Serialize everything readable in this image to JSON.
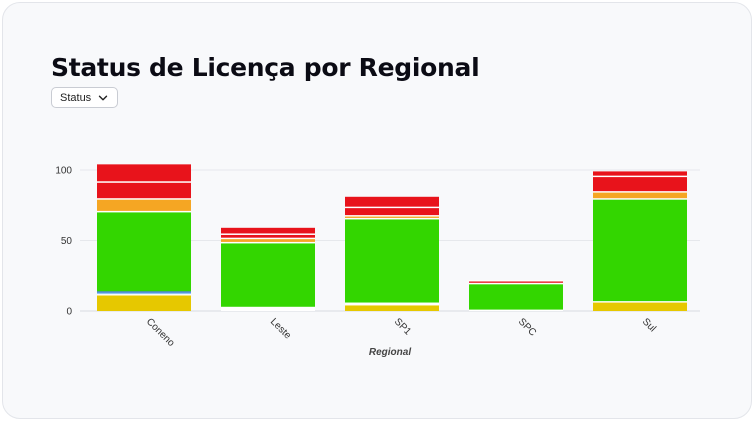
{
  "title": "Status de Licença por Regional",
  "dropdown": {
    "label": "Status"
  },
  "chart_data": {
    "type": "bar",
    "stacked": true,
    "categories": [
      "Coneno",
      "Leste",
      "SP1",
      "SPC",
      "Sul"
    ],
    "xlabel": "Regional",
    "ylabel": "",
    "ylim": [
      0,
      118
    ],
    "yticks": [
      0,
      50,
      100
    ],
    "grid": true,
    "series": [
      {
        "color": "#e6c800",
        "values": [
          11,
          0,
          4,
          0,
          6
        ]
      },
      {
        "color": "#ffffff",
        "values": [
          1,
          3,
          2,
          1,
          1
        ]
      },
      {
        "color": "#8fc8ee",
        "values": [
          1,
          0,
          0,
          0,
          0
        ]
      },
      {
        "color": "#2e6fd0",
        "values": [
          1,
          0,
          0,
          0,
          0
        ]
      },
      {
        "color": "#33d600",
        "values": [
          56,
          45,
          59,
          18,
          72
        ]
      },
      {
        "color": "#ffffff",
        "values": [
          1,
          1,
          1,
          1,
          1
        ]
      },
      {
        "color": "#f5a623",
        "values": [
          8,
          2,
          1,
          0,
          4
        ]
      },
      {
        "color": "#ffffff",
        "values": [
          1,
          1,
          1,
          0,
          1
        ]
      },
      {
        "color": "#e8131b",
        "values": [
          11,
          2,
          5,
          1,
          10
        ]
      },
      {
        "color": "#ffffff",
        "values": [
          1,
          1,
          1,
          1,
          1
        ]
      },
      {
        "color": "#e8131b",
        "values": [
          12,
          4,
          7,
          0,
          3
        ]
      }
    ]
  }
}
